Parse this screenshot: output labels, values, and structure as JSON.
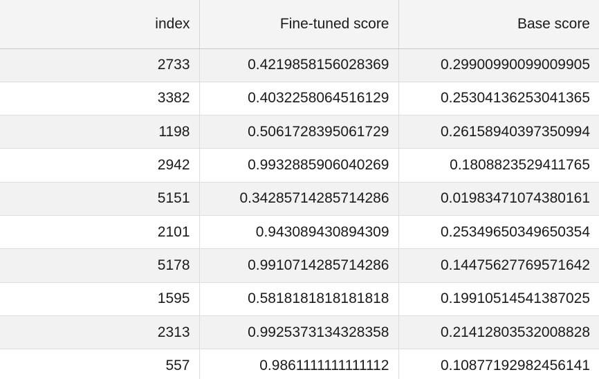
{
  "table": {
    "columns": [
      "index",
      "Fine-tuned score",
      "Base score"
    ],
    "rows": [
      [
        "2733",
        "0.4219858156028369",
        "0.29900990099009905"
      ],
      [
        "3382",
        "0.4032258064516129",
        "0.25304136253041365"
      ],
      [
        "1198",
        "0.5061728395061729",
        "0.26158940397350994"
      ],
      [
        "2942",
        "0.9932885906040269",
        "0.1808823529411765"
      ],
      [
        "5151",
        "0.34285714285714286",
        "0.01983471074380161"
      ],
      [
        "2101",
        "0.943089430894309",
        "0.25349650349650354"
      ],
      [
        "5178",
        "0.9910714285714286",
        "0.14475627769571642"
      ],
      [
        "1595",
        "0.5818181818181818",
        "0.19910514541387025"
      ],
      [
        "2313",
        "0.9925373134328358",
        "0.21412803532008828"
      ],
      [
        "557",
        "0.9861111111111112",
        "0.10877192982456141"
      ]
    ]
  }
}
